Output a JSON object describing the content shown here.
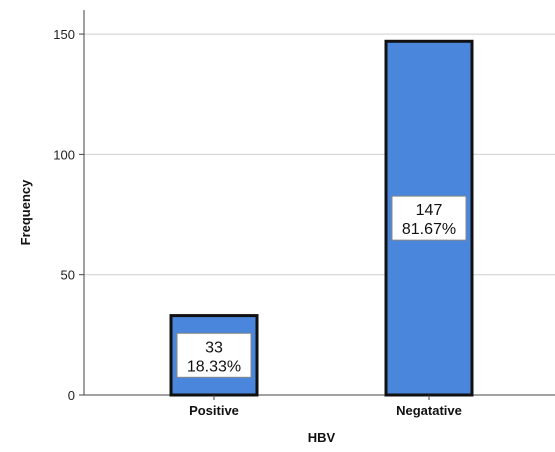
{
  "chart_data": {
    "type": "bar",
    "categories": [
      "Positive",
      "Negatative"
    ],
    "values": [
      33,
      147
    ],
    "data_labels": [
      {
        "count": "33",
        "percent": "18.33%"
      },
      {
        "count": "147",
        "percent": "81.67%"
      }
    ],
    "xlabel": "HBV",
    "ylabel": "Frequency",
    "ylim": [
      0,
      160
    ],
    "yticks": [
      0,
      50,
      100,
      150
    ],
    "grid": true,
    "bar_color": "#4a86dc",
    "bar_edge_color": "#111111",
    "grid_color": "#cfcfcf"
  }
}
